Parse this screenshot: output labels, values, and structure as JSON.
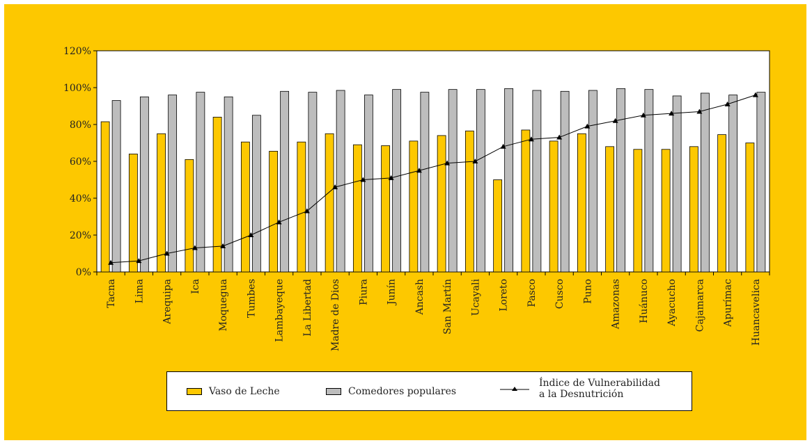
{
  "colors": {
    "background": "#fdc800",
    "vaso": "#fdc800",
    "comedores": "#bdbdbd",
    "line": "#000000"
  },
  "legend": {
    "vaso": "Vaso de Leche",
    "comedores": "Comedores populares",
    "indice": "Índice de Vulnerabilidad\na la Desnutrición"
  },
  "chart_data": {
    "type": "bar",
    "ylim": [
      0,
      120
    ],
    "yticks": [
      "0%",
      "20%",
      "40%",
      "60%",
      "80%",
      "100%",
      "120%"
    ],
    "legend_position": "bottom",
    "grid": false,
    "categories": [
      "Tacna",
      "Lima",
      "Arequipa",
      "Ica",
      "Moquegua",
      "Tumbes",
      "Lambayeque",
      "La Libertad",
      "Madre de Dios",
      "Piura",
      "Junín",
      "Ancash",
      "San Martín",
      "Ucayali",
      "Loreto",
      "Pasco",
      "Cusco",
      "Puno",
      "Amazonas",
      "Huánuco",
      "Ayacucho",
      "Cajamarca",
      "Apurímac",
      "Huancavelica"
    ],
    "series": [
      {
        "name": "Vaso de Leche",
        "kind": "bar",
        "values": [
          81.5,
          64,
          75,
          61,
          84,
          70.5,
          65.5,
          70.5,
          75,
          69,
          68.5,
          71,
          74,
          76.5,
          50,
          77,
          71,
          75,
          68,
          66.5,
          66.5,
          68,
          74.5,
          70
        ]
      },
      {
        "name": "Comedores populares",
        "kind": "bar",
        "values": [
          93,
          95,
          96,
          97.5,
          95,
          85,
          98,
          97.5,
          98.5,
          96,
          99,
          97.5,
          99,
          99,
          99.5,
          98.5,
          98,
          98.5,
          99.5,
          99,
          95.5,
          97,
          96,
          97.5
        ]
      },
      {
        "name": "Índice de Vulnerabilidad a la Desnutrición",
        "kind": "line",
        "values": [
          5,
          6,
          10,
          13,
          14,
          20,
          27,
          33,
          46,
          50,
          51,
          55,
          59,
          60,
          68,
          72,
          73,
          79,
          82,
          85,
          86,
          87,
          91,
          96
        ]
      }
    ]
  }
}
